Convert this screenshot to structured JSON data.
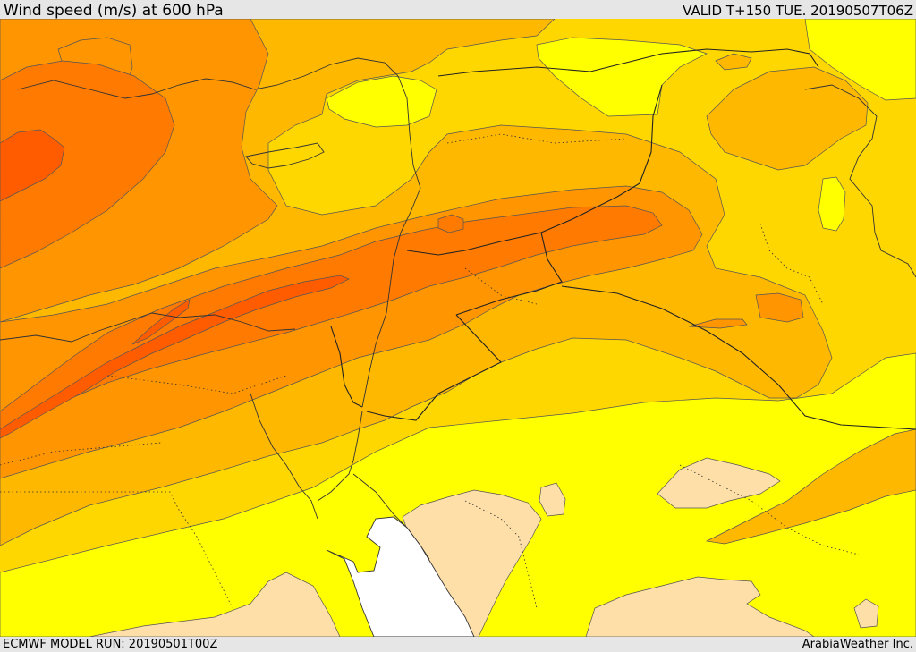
{
  "header": {
    "title": "Wind speed (m/s) at 600 hPa",
    "valid_time": "VALID T+150 TUE. 20190507T06Z"
  },
  "footer": {
    "model_run": "ECMWF MODEL RUN: 20190501T00Z",
    "brand": "ArabiaWeather Inc."
  },
  "colors": {
    "band_lt10": "#ffdfa8",
    "band_10_15": "#ffff00",
    "band_15_20": "#ffd700",
    "band_20_25": "#ffb800",
    "band_25_30": "#ff9500",
    "band_30_35": "#ff7a00",
    "band_gt35": "#ff5c00",
    "water_white": "#ffffff"
  }
}
